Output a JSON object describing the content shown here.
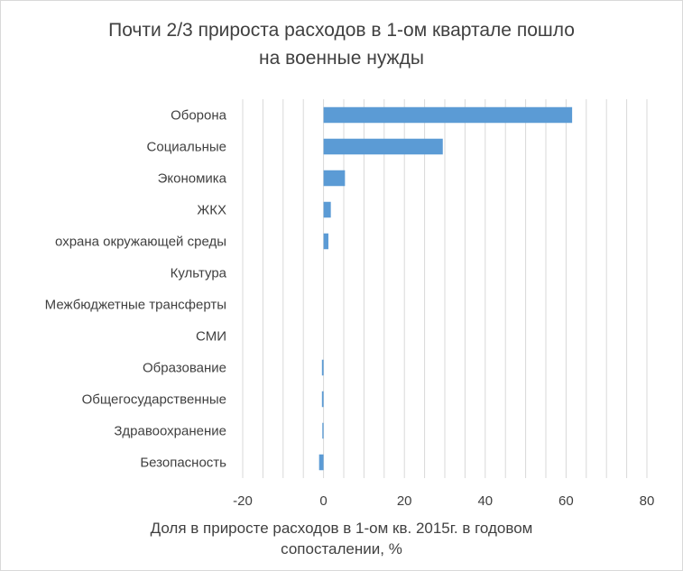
{
  "chart_data": {
    "type": "bar",
    "orientation": "horizontal",
    "title": "Почти 2/3 прироста расходов в 1-ом квартале пошло\nна военные нужды",
    "xlabel": "Доля в приросте расходов в 1-ом кв. 2015г. в годовом\nсопосталении, %",
    "ylabel": "",
    "categories": [
      "Оборона",
      "Социальные",
      "Экономика",
      "ЖКХ",
      "охрана окружающей среды",
      "Культура",
      "Межбюджетные трансферты",
      "СМИ",
      "Образование",
      "Общегосударственные",
      "Здравоохранение",
      "Безопасность"
    ],
    "values": [
      61.5,
      29.5,
      5.3,
      1.8,
      1.2,
      0.0,
      0.0,
      0.0,
      -0.4,
      -0.4,
      -0.3,
      -1.1
    ],
    "xlim": [
      -20,
      80
    ],
    "xticks": [
      -20,
      0,
      20,
      40,
      60,
      80
    ],
    "grid": true,
    "legend": "none",
    "colors": {
      "bar": "#5b9bd5",
      "grid": "#d9d9d9",
      "text": "#404040"
    }
  }
}
